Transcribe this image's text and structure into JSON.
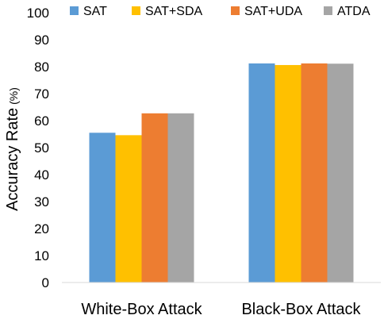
{
  "chart_data": {
    "type": "bar",
    "categories": [
      "White-Box Attack",
      "Black-Box Attack"
    ],
    "series": [
      {
        "name": "SAT",
        "values": [
          55.5,
          81.2
        ],
        "color": "#5B9BD5"
      },
      {
        "name": "SAT+SDA",
        "values": [
          54.6,
          80.6
        ],
        "color": "#FFC000"
      },
      {
        "name": "SAT+UDA",
        "values": [
          62.7,
          81.2
        ],
        "color": "#ED7D31"
      },
      {
        "name": "ATDA",
        "values": [
          62.7,
          81.1
        ],
        "color": "#A5A5A5"
      }
    ],
    "ylabel": "Accuracy Rate",
    "ylabel_unit": "(%)",
    "ylim": [
      0,
      100
    ],
    "yticks": [
      0,
      10,
      20,
      30,
      40,
      50,
      60,
      70,
      80,
      90,
      100
    ],
    "grid": false,
    "legend_position": "top"
  }
}
